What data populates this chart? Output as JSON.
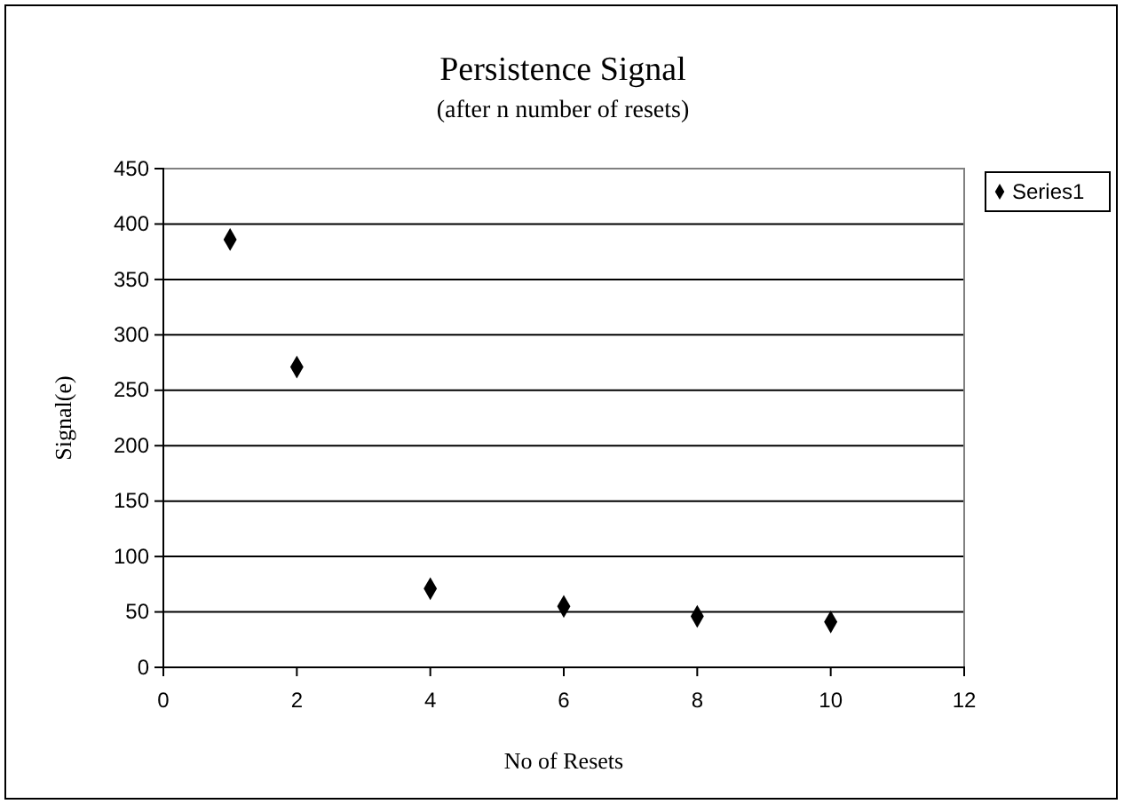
{
  "chart_data": {
    "type": "scatter",
    "title": "Persistence Signal",
    "subtitle": "(after n number of resets)",
    "xlabel": "No of Resets",
    "ylabel": "Signal(e)",
    "x": [
      1,
      2,
      4,
      6,
      8,
      10
    ],
    "series": [
      {
        "name": "Series1",
        "color": "#000000",
        "values": [
          386,
          271,
          71,
          55,
          46,
          41
        ]
      }
    ],
    "xlim": [
      0,
      12
    ],
    "xticks": [
      0,
      2,
      4,
      6,
      8,
      10,
      12
    ],
    "ylim": [
      0,
      450
    ],
    "yticks": [
      0,
      50,
      100,
      150,
      200,
      250,
      300,
      350,
      400,
      450
    ],
    "grid": "y",
    "legend": "right",
    "marker": "diamond"
  }
}
